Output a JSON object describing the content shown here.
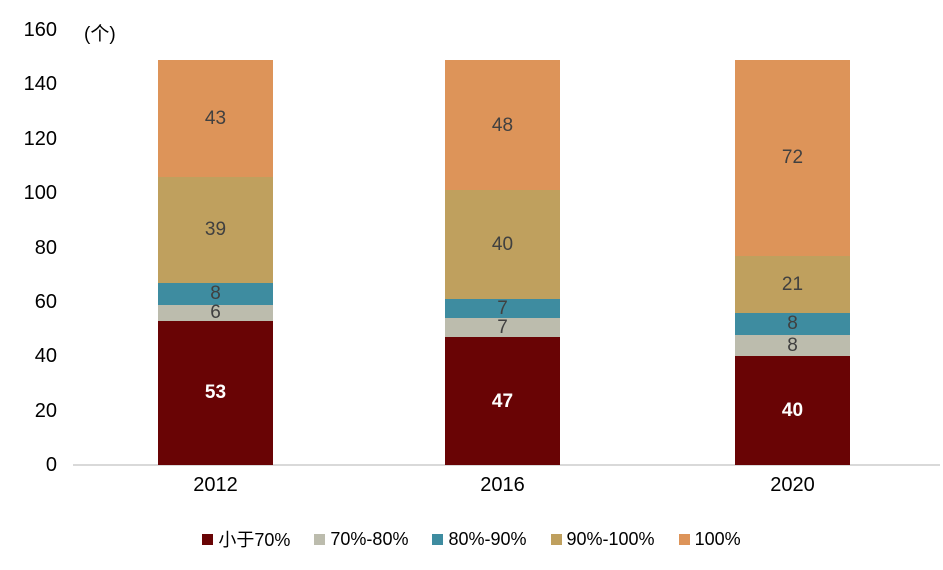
{
  "chart_data": {
    "type": "bar",
    "stacked": true,
    "title": "",
    "unit_label": "(个)",
    "categories": [
      "2012",
      "2016",
      "2020"
    ],
    "series": [
      {
        "name": "小于70%",
        "color": "#690405",
        "label_color": "#FFFFFF",
        "label_bold": true,
        "values": [
          53,
          47,
          40
        ]
      },
      {
        "name": "70%-80%",
        "color": "#BCBCAD",
        "label_color": "#404040",
        "label_bold": false,
        "values": [
          6,
          7,
          8
        ]
      },
      {
        "name": "80%-90%",
        "color": "#3E8CA0",
        "label_color": "#404040",
        "label_bold": false,
        "values": [
          8,
          7,
          8
        ]
      },
      {
        "name": "90%-100%",
        "color": "#BFA05E",
        "label_color": "#404040",
        "label_bold": false,
        "values": [
          39,
          40,
          21
        ]
      },
      {
        "name": "100%",
        "color": "#DD9459",
        "label_color": "#404040",
        "label_bold": false,
        "values": [
          43,
          48,
          72
        ]
      }
    ],
    "totals": [
      149,
      149,
      149
    ],
    "ylabel": "",
    "xlabel": "",
    "ylim": [
      0,
      160
    ],
    "yticks": [
      0,
      20,
      40,
      60,
      80,
      100,
      120,
      140,
      160
    ],
    "grid": false,
    "legend_position": "bottom",
    "axis_line_color": "#D9D9D9",
    "tick_label_color": "#000000"
  }
}
